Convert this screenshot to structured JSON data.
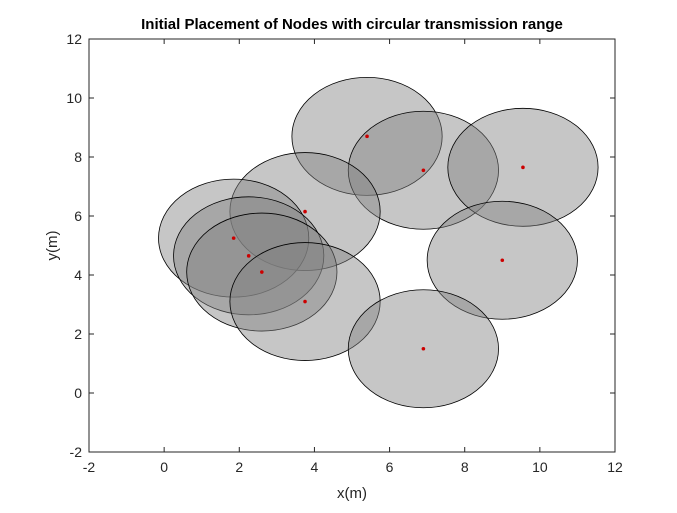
{
  "chart_data": {
    "type": "scatter",
    "title": "Initial Placement of Nodes with circular transmission range",
    "xlabel": "x(m)",
    "ylabel": "y(m)",
    "xlim": [
      -2,
      12
    ],
    "ylim": [
      -2,
      12
    ],
    "xticks": [
      "-2",
      "0",
      "2",
      "4",
      "6",
      "8",
      "10",
      "12"
    ],
    "yticks": [
      "-2",
      "0",
      "2",
      "4",
      "6",
      "8",
      "10",
      "12"
    ],
    "grid": false,
    "legend": "none",
    "transmission_range": 2,
    "colors": {
      "node": "#cc0000",
      "range_fill": "#808080",
      "range_fill_opacity": 0.45,
      "range_stroke": "#000000"
    },
    "nodes": [
      {
        "x": 5.4,
        "y": 8.7
      },
      {
        "x": 6.9,
        "y": 7.55
      },
      {
        "x": 9.55,
        "y": 7.65
      },
      {
        "x": 3.75,
        "y": 6.15
      },
      {
        "x": 1.85,
        "y": 5.25
      },
      {
        "x": 2.25,
        "y": 4.65
      },
      {
        "x": 2.6,
        "y": 4.1
      },
      {
        "x": 3.75,
        "y": 3.1
      },
      {
        "x": 9.0,
        "y": 4.5
      },
      {
        "x": 6.9,
        "y": 1.5
      }
    ]
  }
}
